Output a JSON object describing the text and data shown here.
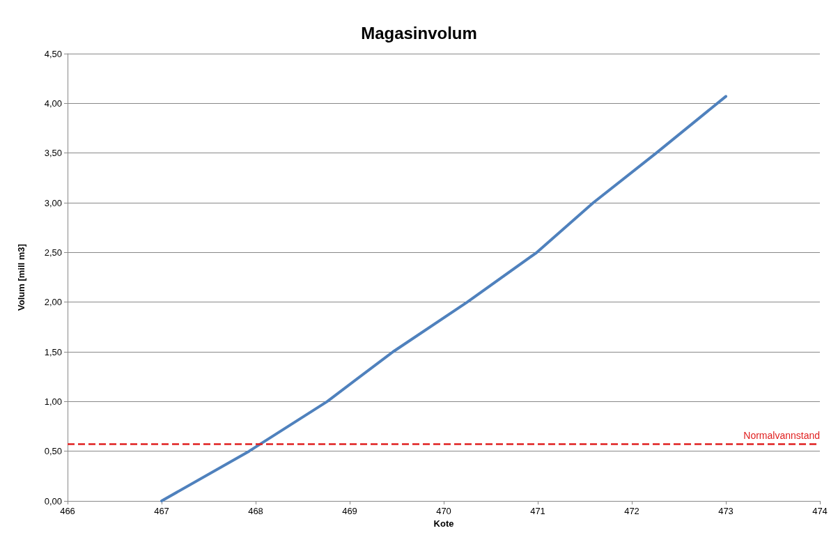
{
  "chart_data": {
    "type": "line",
    "title": "Magasinvolum",
    "xlabel": "Kote",
    "ylabel": "Volum [mill m3]",
    "series": [
      {
        "color": "#4f81bd",
        "x": [
          467,
          467.93,
          468.76,
          469.46,
          470.25,
          470.99,
          471.59,
          472.26,
          473
        ],
        "values": [
          0,
          0.5,
          1,
          1.5,
          2,
          2.5,
          3,
          3.5,
          4.07
        ]
      }
    ],
    "xlim": [
      466,
      474
    ],
    "xticks": [
      466,
      467,
      468,
      469,
      470,
      471,
      472,
      473,
      474
    ],
    "ylim": [
      0,
      4.5
    ],
    "yticks": [
      {
        "value": 0,
        "label": "0,00"
      },
      {
        "value": 0.5,
        "label": "0,50"
      },
      {
        "value": 1,
        "label": "1,00"
      },
      {
        "value": 1.5,
        "label": "1,50"
      },
      {
        "value": 2,
        "label": "2,00"
      },
      {
        "value": 2.5,
        "label": "2,50"
      },
      {
        "value": 3,
        "label": "3,00"
      },
      {
        "value": 3.5,
        "label": "3,50"
      },
      {
        "value": 4,
        "label": "4,00"
      },
      {
        "value": 4.5,
        "label": "4,50"
      }
    ],
    "ref_lines": [
      {
        "axis": "y",
        "value": 0.57,
        "label": "Normalvannstand",
        "color": "#e02020",
        "line_style": "dashed"
      }
    ],
    "grid": "y",
    "marker": "none",
    "line_style": "solid"
  }
}
